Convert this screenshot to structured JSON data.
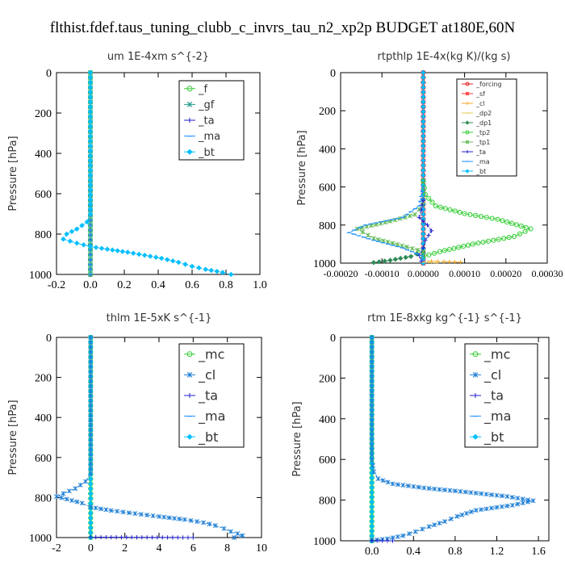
{
  "figure": {
    "title": "flthist.fdef.taus_tuning_clubb_c_invrs_tau_n2_xp2p  BUDGET at180E,60N"
  },
  "chart_data": [
    {
      "type": "line",
      "title": "um   1E-4xm s^{-2}",
      "xlabel": "",
      "ylabel": "Pressure [hPa]",
      "xlim": [
        -0.2,
        1.0
      ],
      "ylim": [
        1000,
        0
      ],
      "xticks": [
        "-0.2",
        "0.0",
        "0.2",
        "0.4",
        "0.6",
        "0.8",
        "1.0"
      ],
      "xtick_values": [
        -0.2,
        0.0,
        0.2,
        0.4,
        0.6,
        0.8,
        1.0
      ],
      "yticks": [
        "0",
        "200",
        "400",
        "600",
        "800",
        "1000"
      ],
      "ytick_values": [
        0,
        200,
        400,
        600,
        800,
        1000
      ],
      "legend": "top-right",
      "legend_font": 13,
      "series": [
        {
          "name": "_f",
          "color": "#33cc33",
          "marker": "circle",
          "points": [
            [
              0,
              0
            ],
            [
              0,
              1000
            ]
          ]
        },
        {
          "name": "_gf",
          "color": "#2a9d8f",
          "marker": "star",
          "points": [
            [
              0,
              0
            ],
            [
              0,
              1000
            ]
          ]
        },
        {
          "name": "_ta",
          "color": "#2222cc",
          "marker": "plus",
          "points": [
            [
              0,
              0
            ],
            [
              0,
              1000
            ]
          ]
        },
        {
          "name": "_ma",
          "color": "#1e90ff",
          "marker": "dash",
          "points": [
            [
              0,
              0
            ],
            [
              0,
              1000
            ]
          ]
        },
        {
          "name": "_bt",
          "color": "#00bfff",
          "marker": "diamond",
          "points": [
            [
              0,
              0
            ],
            [
              0,
              700
            ],
            [
              -0.02,
              740
            ],
            [
              -0.08,
              775
            ],
            [
              -0.14,
              800
            ],
            [
              -0.16,
              825
            ],
            [
              -0.08,
              845
            ],
            [
              0.0,
              862
            ],
            [
              0.1,
              875
            ],
            [
              0.22,
              890
            ],
            [
              0.32,
              905
            ],
            [
              0.42,
              920
            ],
            [
              0.52,
              940
            ],
            [
              0.6,
              960
            ],
            [
              0.68,
              975
            ],
            [
              0.78,
              990
            ],
            [
              0.83,
              1000
            ]
          ]
        }
      ]
    },
    {
      "type": "line",
      "title": "rtpthlp   1E-4x(kg K)/(kg s)",
      "xlabel": "",
      "ylabel": "Pressure [hPa]",
      "xlim": [
        -0.0002,
        0.0003
      ],
      "ylim": [
        1000,
        0
      ],
      "xticks": [
        "-0.00020",
        "-0.00010",
        "0.00000",
        "0.00010",
        "0.00020",
        "0.00030"
      ],
      "xtick_values": [
        -0.0002,
        -0.0001,
        0.0,
        0.0001,
        0.0002,
        0.0003
      ],
      "yticks": [
        "0",
        "200",
        "400",
        "600",
        "800",
        "1000"
      ],
      "ytick_values": [
        0,
        200,
        400,
        600,
        800,
        1000
      ],
      "legend": "top-right",
      "legend_font": 8,
      "series": [
        {
          "name": "_forcing",
          "color": "#e62222",
          "marker": "circle",
          "points": [
            [
              0,
              0
            ],
            [
              0,
              1000
            ]
          ]
        },
        {
          "name": "_sf",
          "color": "#ff3333",
          "marker": "star",
          "points": [
            [
              0,
              930
            ],
            [
              0,
              1000
            ]
          ]
        },
        {
          "name": "_cl",
          "color": "#f5a623",
          "marker": "plus",
          "points": [
            [
              0,
              985
            ],
            [
              2e-05,
              990
            ],
            [
              5e-05,
              992
            ],
            [
              9e-05,
              995
            ]
          ]
        },
        {
          "name": "_dp2",
          "color": "#e6c84f",
          "marker": "dash",
          "points": [
            [
              0,
              995
            ],
            [
              3e-05,
              998
            ]
          ]
        },
        {
          "name": "_dp1",
          "color": "#2e8b57",
          "marker": "diamond",
          "points": [
            [
              0,
              940
            ],
            [
              -3e-05,
              965
            ],
            [
              -8e-05,
              985
            ],
            [
              -0.00012,
              997
            ]
          ]
        },
        {
          "name": "_tp2",
          "color": "#33cc33",
          "marker": "circle",
          "points": [
            [
              0,
              570
            ],
            [
              5e-06,
              640
            ],
            [
              3e-05,
              700
            ],
            [
              0.0001,
              740
            ],
            [
              0.00018,
              770
            ],
            [
              0.00026,
              820
            ],
            [
              0.00022,
              860
            ],
            [
              0.00012,
              900
            ],
            [
              4e-05,
              940
            ],
            [
              0,
              965
            ]
          ]
        },
        {
          "name": "_tp1",
          "color": "#66bb55",
          "marker": "star",
          "points": [
            [
              0,
              690
            ],
            [
              -2e-05,
              745
            ],
            [
              -8e-05,
              780
            ],
            [
              -0.00016,
              820
            ],
            [
              -0.00012,
              870
            ],
            [
              -4e-05,
              915
            ],
            [
              0,
              940
            ]
          ]
        },
        {
          "name": "_ta",
          "color": "#2222cc",
          "marker": "plus",
          "points": [
            [
              0,
              670
            ],
            [
              -5e-06,
              720
            ],
            [
              -1e-05,
              760
            ],
            [
              1e-05,
              800
            ],
            [
              2e-05,
              830
            ],
            [
              5e-06,
              880
            ],
            [
              0,
              920
            ],
            [
              -1e-05,
              960
            ],
            [
              -5e-06,
              990
            ]
          ]
        },
        {
          "name": "_ma",
          "color": "#1e90ff",
          "marker": "dash",
          "points": [
            [
              0,
              600
            ],
            [
              -1e-05,
              700
            ],
            [
              -5e-05,
              760
            ],
            [
              -0.00014,
              800
            ],
            [
              -0.00018,
              840
            ],
            [
              -0.00012,
              880
            ],
            [
              -5e-05,
              920
            ],
            [
              -5e-06,
              960
            ],
            [
              0,
              985
            ]
          ]
        },
        {
          "name": "_bt",
          "color": "#00bfff",
          "marker": "diamond",
          "points": [
            [
              0,
              0
            ],
            [
              0,
              1000
            ]
          ]
        }
      ]
    },
    {
      "type": "line",
      "title": "thlm   1E-5xK s^{-1}",
      "xlabel": "",
      "ylabel": "Pressure [hPa]",
      "xlim": [
        -2,
        10
      ],
      "ylim": [
        1000,
        0
      ],
      "xticks": [
        "-2",
        "0",
        "2",
        "4",
        "6",
        "8",
        "10"
      ],
      "xtick_values": [
        -2,
        0,
        2,
        4,
        6,
        8,
        10
      ],
      "yticks": [
        "0",
        "200",
        "400",
        "600",
        "800",
        "1000"
      ],
      "ytick_values": [
        0,
        200,
        400,
        600,
        800,
        1000
      ],
      "legend": "top-right",
      "legend_font": 16,
      "series": [
        {
          "name": "_mc",
          "color": "#33cc33",
          "marker": "circle",
          "points": [
            [
              0,
              0
            ],
            [
              0,
              1000
            ]
          ]
        },
        {
          "name": "_cl",
          "color": "#1e7fd6",
          "marker": "star",
          "points": [
            [
              0,
              0
            ],
            [
              0,
              680
            ],
            [
              -0.3,
              720
            ],
            [
              -0.9,
              755
            ],
            [
              -1.6,
              780
            ],
            [
              -2,
              795
            ],
            [
              -1.4,
              808
            ],
            [
              -0.5,
              828
            ],
            [
              0,
              848
            ],
            [
              1.2,
              865
            ],
            [
              2.6,
              880
            ],
            [
              4.0,
              895
            ],
            [
              5.5,
              910
            ],
            [
              6.6,
              925
            ],
            [
              7.3,
              940
            ],
            [
              7.8,
              955
            ],
            [
              8.2,
              970
            ],
            [
              8.6,
              980
            ],
            [
              8.9,
              990
            ],
            [
              8.4,
              1000
            ]
          ]
        },
        {
          "name": "_ta",
          "color": "#2222cc",
          "marker": "plus",
          "points": [
            [
              0,
              998
            ],
            [
              3,
              999
            ],
            [
              6,
              1000
            ]
          ]
        },
        {
          "name": "_ma",
          "color": "#1e90ff",
          "marker": "dash",
          "points": [
            [
              0,
              0
            ],
            [
              0,
              1000
            ]
          ]
        },
        {
          "name": "_bt",
          "color": "#00bfff",
          "marker": "diamond",
          "points": [
            [
              0,
              0
            ],
            [
              0,
              1000
            ]
          ]
        }
      ]
    },
    {
      "type": "line",
      "title": "rtm   1E-8xkg kg^{-1} s^{-1}",
      "xlabel": "",
      "ylabel": "Pressure [hPa]",
      "xlim": [
        -0.3,
        1.7
      ],
      "ylim": [
        1000,
        0
      ],
      "xticks": [
        "0.0",
        "0.4",
        "0.8",
        "1.2",
        "1.6"
      ],
      "xtick_values": [
        0.0,
        0.4,
        0.8,
        1.2,
        1.6
      ],
      "yticks": [
        "0",
        "200",
        "400",
        "600",
        "800",
        "1000"
      ],
      "ytick_values": [
        0,
        200,
        400,
        600,
        800,
        1000
      ],
      "legend": "top-right",
      "legend_font": 16,
      "series": [
        {
          "name": "_mc",
          "color": "#33cc33",
          "marker": "circle",
          "points": [
            [
              0,
              0
            ],
            [
              0,
              1000
            ]
          ]
        },
        {
          "name": "_cl",
          "color": "#1e7fd6",
          "marker": "star",
          "points": [
            [
              0,
              0
            ],
            [
              0,
              600
            ],
            [
              0.02,
              660
            ],
            [
              0.06,
              695
            ],
            [
              0.2,
              720
            ],
            [
              0.5,
              740
            ],
            [
              0.9,
              760
            ],
            [
              1.3,
              782
            ],
            [
              1.55,
              803
            ],
            [
              1.35,
              825
            ],
            [
              1.0,
              850
            ],
            [
              0.82,
              880
            ],
            [
              0.7,
              905
            ],
            [
              0.55,
              930
            ],
            [
              0.42,
              955
            ],
            [
              0.3,
              975
            ],
            [
              0.15,
              990
            ],
            [
              0.0,
              998
            ]
          ]
        },
        {
          "name": "_ta",
          "color": "#2222cc",
          "marker": "plus",
          "points": [
            [
              0,
              999
            ],
            [
              0.2,
              1000
            ]
          ]
        },
        {
          "name": "_ma",
          "color": "#1e90ff",
          "marker": "dash",
          "points": [
            [
              0,
              0
            ],
            [
              0,
              1000
            ]
          ]
        },
        {
          "name": "_bt",
          "color": "#00bfff",
          "marker": "diamond",
          "points": [
            [
              0,
              0
            ],
            [
              0,
              1000
            ]
          ]
        }
      ]
    }
  ]
}
